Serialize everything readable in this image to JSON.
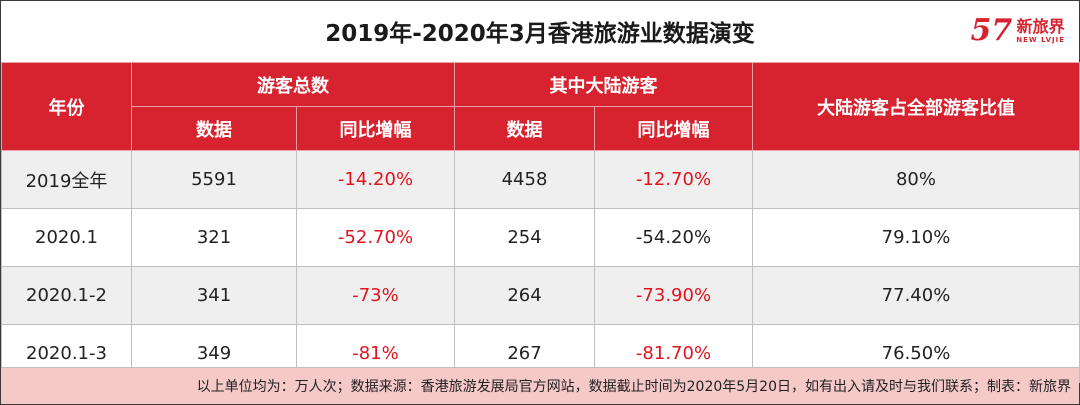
{
  "title": "2019年-2020年3月香港旅游业数据演变",
  "logo": {
    "cn": "新旅界",
    "en": "NEW LVJIE",
    "mark": "57",
    "brand_color": "#d7232f"
  },
  "colors": {
    "header_bg": "#d7232f",
    "negative": "#e0141e",
    "footer_bg": "#f6c9c9",
    "stripe": "#efefef"
  },
  "header": {
    "year": "年份",
    "total_group": "游客总数",
    "mainland_group": "其中大陆游客",
    "ratio": "大陆游客占全部游客比值",
    "col_data_1": "数据",
    "col_yoy_1": "同比增幅",
    "col_data_2": "数据",
    "col_yoy_2": "同比增幅"
  },
  "rows": [
    {
      "year": "2019全年",
      "total": "5591",
      "total_yoy": "-14.20%",
      "mainland": "4458",
      "mainland_yoy": "-12.70%",
      "ratio": "80%"
    },
    {
      "year": "2020.1",
      "total": "321",
      "total_yoy": "-52.70%",
      "mainland": "254",
      "mainland_yoy": "-54.20%",
      "ratio": "79.10%"
    },
    {
      "year": "2020.1-2",
      "total": "341",
      "total_yoy": "-73%",
      "mainland": "264",
      "mainland_yoy": "-73.90%",
      "ratio": "77.40%"
    },
    {
      "year": "2020.1-3",
      "total": "349",
      "total_yoy": "-81%",
      "mainland": "267",
      "mainland_yoy": "-81.70%",
      "ratio": "76.50%"
    }
  ],
  "footer": "以上单位均为：万人次；数据来源：香港旅游发展局官方网站，数据截止时间为2020年5月20日，如有出入请及时与我们联系；制表：新旅界"
}
